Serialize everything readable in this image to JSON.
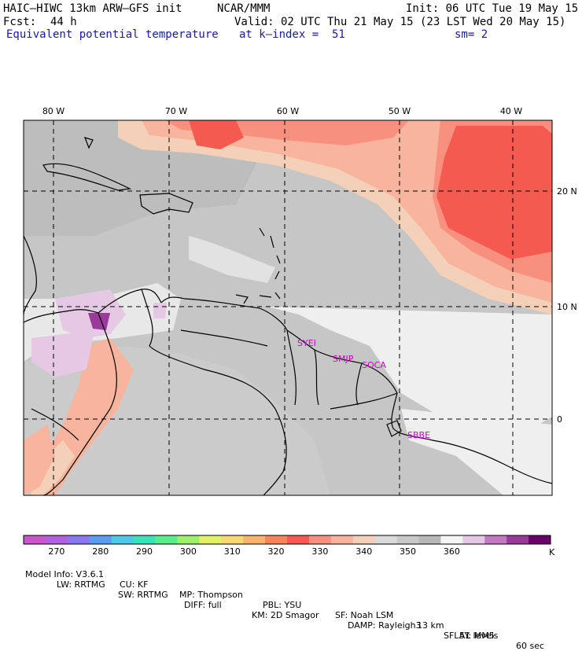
{
  "header": {
    "model": "HAIC–HIWC 13km ARW–GFS init",
    "org": "NCAR/MMM",
    "init": "Init: 06 UTC Tue 19 May 15",
    "fcst_label": "Fcst:",
    "fcst_value": "44 h",
    "valid": "Valid: 02 UTC Thu 21 May 15 (23 LST Wed 20 May 15)",
    "field": "Equivalent potential temperature",
    "kindex": "at k–index =  51",
    "sm": "sm= 2"
  },
  "longitude_labels": [
    "80 W",
    "70 W",
    "60 W",
    "50 W",
    "40 W"
  ],
  "latitude_labels": [
    "20 N",
    "10 N",
    "0"
  ],
  "stations": [
    "SYEI",
    "SMJP",
    "SOCA",
    "SBBE"
  ],
  "colorbar": {
    "colors": [
      "#cc55cc",
      "#b25fe0",
      "#8a78f0",
      "#5a9cf2",
      "#4cc8e8",
      "#3ee0b8",
      "#5aee8a",
      "#9cf06a",
      "#e2f264",
      "#f8d872",
      "#f8b46a",
      "#f8845a",
      "#f45a50",
      "#f89080",
      "#f8b49c",
      "#f4d0b8",
      "#dadada",
      "#c8c8c8",
      "#b8b8b8",
      "#f4f4f4",
      "#e4c8e4",
      "#c478c4",
      "#9a3a9a",
      "#6a006a"
    ],
    "tick_labels": [
      "270",
      "280",
      "290",
      "300",
      "310",
      "320",
      "330",
      "340",
      "350",
      "360"
    ],
    "unit": "K"
  },
  "footer": {
    "line1": [
      "Model Info: V3.6.1",
      "CU: KF",
      "MP: Thompson",
      "PBL: YSU",
      "SF: Noah LSM",
      "13 km",
      "51 levels",
      "60 sec"
    ],
    "line2": [
      "LW: RRTMG",
      "SW: RRTMG",
      "DIFF: full",
      "KM: 2D Smagor",
      "DAMP: Rayleigh3",
      "SFLAY: MM5"
    ]
  }
}
